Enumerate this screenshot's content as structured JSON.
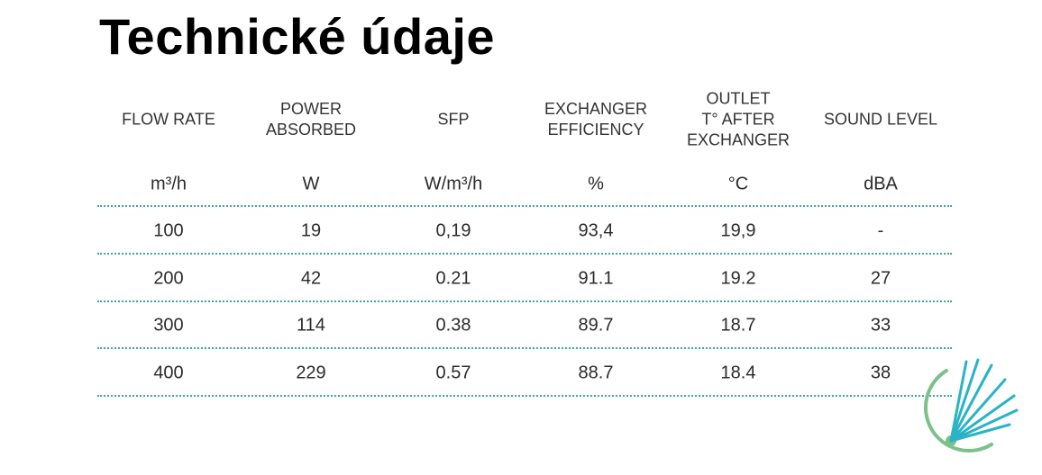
{
  "title": "Technické údaje",
  "table": {
    "headers": [
      [
        "FLOW RATE"
      ],
      [
        "POWER",
        "ABSORBED"
      ],
      [
        "SFP"
      ],
      [
        "EXCHANGER",
        "EFFICIENCY"
      ],
      [
        "OUTLET",
        "T° AFTER",
        "EXCHANGER"
      ],
      [
        "SOUND LEVEL"
      ]
    ],
    "units": [
      "m³/h",
      "W",
      "W/m³/h",
      "%",
      "°C",
      "dBA"
    ],
    "rows": [
      [
        "100",
        "19",
        "0,19",
        "93,4",
        "19,9",
        "-"
      ],
      [
        "200",
        "42",
        "0.21",
        "91.1",
        "19.2",
        "27"
      ],
      [
        "300",
        "114",
        "0.38",
        "89.7",
        "18.7",
        "33"
      ],
      [
        "400",
        "229",
        "0.57",
        "88.7",
        "18.4",
        "38"
      ]
    ]
  }
}
